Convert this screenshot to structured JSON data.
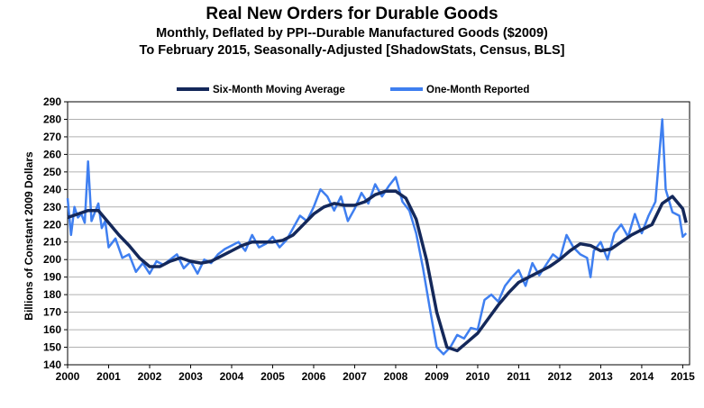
{
  "chart_data": {
    "type": "line",
    "title": "Real New Orders for Durable Goods",
    "subtitle": [
      "Monthly, Deflated by PPI--Durable Manufactured Goods ($2009)",
      "To February 2015, Seasonally-Adjusted [ShadowStats, Census, BLS]"
    ],
    "ylabel": "Billions of Constant 2009 Dollars",
    "xlabel": "",
    "ylim": [
      140,
      290
    ],
    "yticks": [
      140,
      150,
      160,
      170,
      180,
      190,
      200,
      210,
      220,
      230,
      240,
      250,
      260,
      270,
      280,
      290
    ],
    "xlim": [
      "2000-01",
      "2015-03"
    ],
    "xticks": [
      "2000",
      "2001",
      "2002",
      "2003",
      "2004",
      "2005",
      "2006",
      "2007",
      "2008",
      "2009",
      "2010",
      "2011",
      "2012",
      "2013",
      "2014",
      "2015"
    ],
    "grid": "horizontal",
    "legend": "top-center",
    "series": [
      {
        "name": "Six-Month Moving Average",
        "color": "#14285a",
        "points": [
          [
            "2000-01",
            224
          ],
          [
            "2000-04",
            226
          ],
          [
            "2000-07",
            228
          ],
          [
            "2000-10",
            228
          ],
          [
            "2001-01",
            221
          ],
          [
            "2001-04",
            214
          ],
          [
            "2001-07",
            208
          ],
          [
            "2001-10",
            201
          ],
          [
            "2002-01",
            196
          ],
          [
            "2002-04",
            196
          ],
          [
            "2002-07",
            199
          ],
          [
            "2002-10",
            201
          ],
          [
            "2003-01",
            199
          ],
          [
            "2003-04",
            198
          ],
          [
            "2003-07",
            199
          ],
          [
            "2003-10",
            202
          ],
          [
            "2004-01",
            205
          ],
          [
            "2004-04",
            208
          ],
          [
            "2004-07",
            210
          ],
          [
            "2004-10",
            210
          ],
          [
            "2005-01",
            210
          ],
          [
            "2005-04",
            211
          ],
          [
            "2005-07",
            214
          ],
          [
            "2005-10",
            220
          ],
          [
            "2006-01",
            226
          ],
          [
            "2006-04",
            230
          ],
          [
            "2006-07",
            232
          ],
          [
            "2006-10",
            231
          ],
          [
            "2007-01",
            231
          ],
          [
            "2007-04",
            233
          ],
          [
            "2007-07",
            237
          ],
          [
            "2007-10",
            239
          ],
          [
            "2008-01",
            239
          ],
          [
            "2008-04",
            235
          ],
          [
            "2008-07",
            223
          ],
          [
            "2008-10",
            200
          ],
          [
            "2009-01",
            170
          ],
          [
            "2009-04",
            150
          ],
          [
            "2009-07",
            148
          ],
          [
            "2009-10",
            153
          ],
          [
            "2010-01",
            158
          ],
          [
            "2010-04",
            166
          ],
          [
            "2010-07",
            174
          ],
          [
            "2010-10",
            181
          ],
          [
            "2011-01",
            187
          ],
          [
            "2011-04",
            190
          ],
          [
            "2011-07",
            193
          ],
          [
            "2011-10",
            196
          ],
          [
            "2012-01",
            200
          ],
          [
            "2012-04",
            205
          ],
          [
            "2012-07",
            209
          ],
          [
            "2012-10",
            208
          ],
          [
            "2013-01",
            205
          ],
          [
            "2013-04",
            206
          ],
          [
            "2013-07",
            210
          ],
          [
            "2013-10",
            214
          ],
          [
            "2014-01",
            217
          ],
          [
            "2014-04",
            220
          ],
          [
            "2014-07",
            232
          ],
          [
            "2014-10",
            236
          ],
          [
            "2015-01",
            229
          ],
          [
            "2015-02",
            221
          ]
        ]
      },
      {
        "name": "One-Month Reported",
        "color": "#3f7ff0",
        "points": [
          [
            "2000-01",
            235
          ],
          [
            "2000-02",
            214
          ],
          [
            "2000-03",
            230
          ],
          [
            "2000-04",
            224
          ],
          [
            "2000-05",
            226
          ],
          [
            "2000-06",
            221
          ],
          [
            "2000-07",
            256
          ],
          [
            "2000-08",
            222
          ],
          [
            "2000-09",
            227
          ],
          [
            "2000-10",
            232
          ],
          [
            "2000-11",
            218
          ],
          [
            "2000-12",
            222
          ],
          [
            "2001-01",
            207
          ],
          [
            "2001-03",
            212
          ],
          [
            "2001-05",
            201
          ],
          [
            "2001-07",
            203
          ],
          [
            "2001-09",
            193
          ],
          [
            "2001-11",
            198
          ],
          [
            "2002-01",
            192
          ],
          [
            "2002-03",
            199
          ],
          [
            "2002-05",
            197
          ],
          [
            "2002-07",
            200
          ],
          [
            "2002-09",
            203
          ],
          [
            "2002-11",
            195
          ],
          [
            "2003-01",
            199
          ],
          [
            "2003-03",
            192
          ],
          [
            "2003-05",
            200
          ],
          [
            "2003-07",
            198
          ],
          [
            "2003-09",
            203
          ],
          [
            "2003-11",
            206
          ],
          [
            "2004-01",
            208
          ],
          [
            "2004-03",
            210
          ],
          [
            "2004-05",
            205
          ],
          [
            "2004-07",
            214
          ],
          [
            "2004-09",
            207
          ],
          [
            "2004-11",
            209
          ],
          [
            "2005-01",
            213
          ],
          [
            "2005-03",
            207
          ],
          [
            "2005-05",
            211
          ],
          [
            "2005-07",
            218
          ],
          [
            "2005-09",
            225
          ],
          [
            "2005-11",
            222
          ],
          [
            "2006-01",
            230
          ],
          [
            "2006-03",
            240
          ],
          [
            "2006-05",
            236
          ],
          [
            "2006-07",
            228
          ],
          [
            "2006-09",
            236
          ],
          [
            "2006-11",
            222
          ],
          [
            "2007-01",
            229
          ],
          [
            "2007-03",
            238
          ],
          [
            "2007-05",
            232
          ],
          [
            "2007-07",
            243
          ],
          [
            "2007-09",
            236
          ],
          [
            "2007-11",
            242
          ],
          [
            "2008-01",
            247
          ],
          [
            "2008-03",
            233
          ],
          [
            "2008-05",
            228
          ],
          [
            "2008-07",
            215
          ],
          [
            "2008-09",
            195
          ],
          [
            "2008-11",
            172
          ],
          [
            "2009-01",
            150
          ],
          [
            "2009-03",
            146
          ],
          [
            "2009-05",
            150
          ],
          [
            "2009-07",
            157
          ],
          [
            "2009-09",
            155
          ],
          [
            "2009-11",
            161
          ],
          [
            "2010-01",
            160
          ],
          [
            "2010-03",
            177
          ],
          [
            "2010-05",
            180
          ],
          [
            "2010-07",
            176
          ],
          [
            "2010-09",
            185
          ],
          [
            "2010-11",
            190
          ],
          [
            "2011-01",
            194
          ],
          [
            "2011-03",
            185
          ],
          [
            "2011-05",
            198
          ],
          [
            "2011-07",
            191
          ],
          [
            "2011-09",
            197
          ],
          [
            "2011-11",
            203
          ],
          [
            "2012-01",
            200
          ],
          [
            "2012-03",
            214
          ],
          [
            "2012-05",
            207
          ],
          [
            "2012-07",
            203
          ],
          [
            "2012-09",
            201
          ],
          [
            "2012-10",
            190
          ],
          [
            "2012-11",
            205
          ],
          [
            "2013-01",
            210
          ],
          [
            "2013-03",
            200
          ],
          [
            "2013-05",
            215
          ],
          [
            "2013-07",
            220
          ],
          [
            "2013-09",
            213
          ],
          [
            "2013-11",
            226
          ],
          [
            "2014-01",
            215
          ],
          [
            "2014-03",
            225
          ],
          [
            "2014-05",
            233
          ],
          [
            "2014-07",
            280
          ],
          [
            "2014-08",
            240
          ],
          [
            "2014-10",
            227
          ],
          [
            "2014-12",
            225
          ],
          [
            "2015-01",
            213
          ],
          [
            "2015-02",
            215
          ]
        ]
      }
    ]
  }
}
